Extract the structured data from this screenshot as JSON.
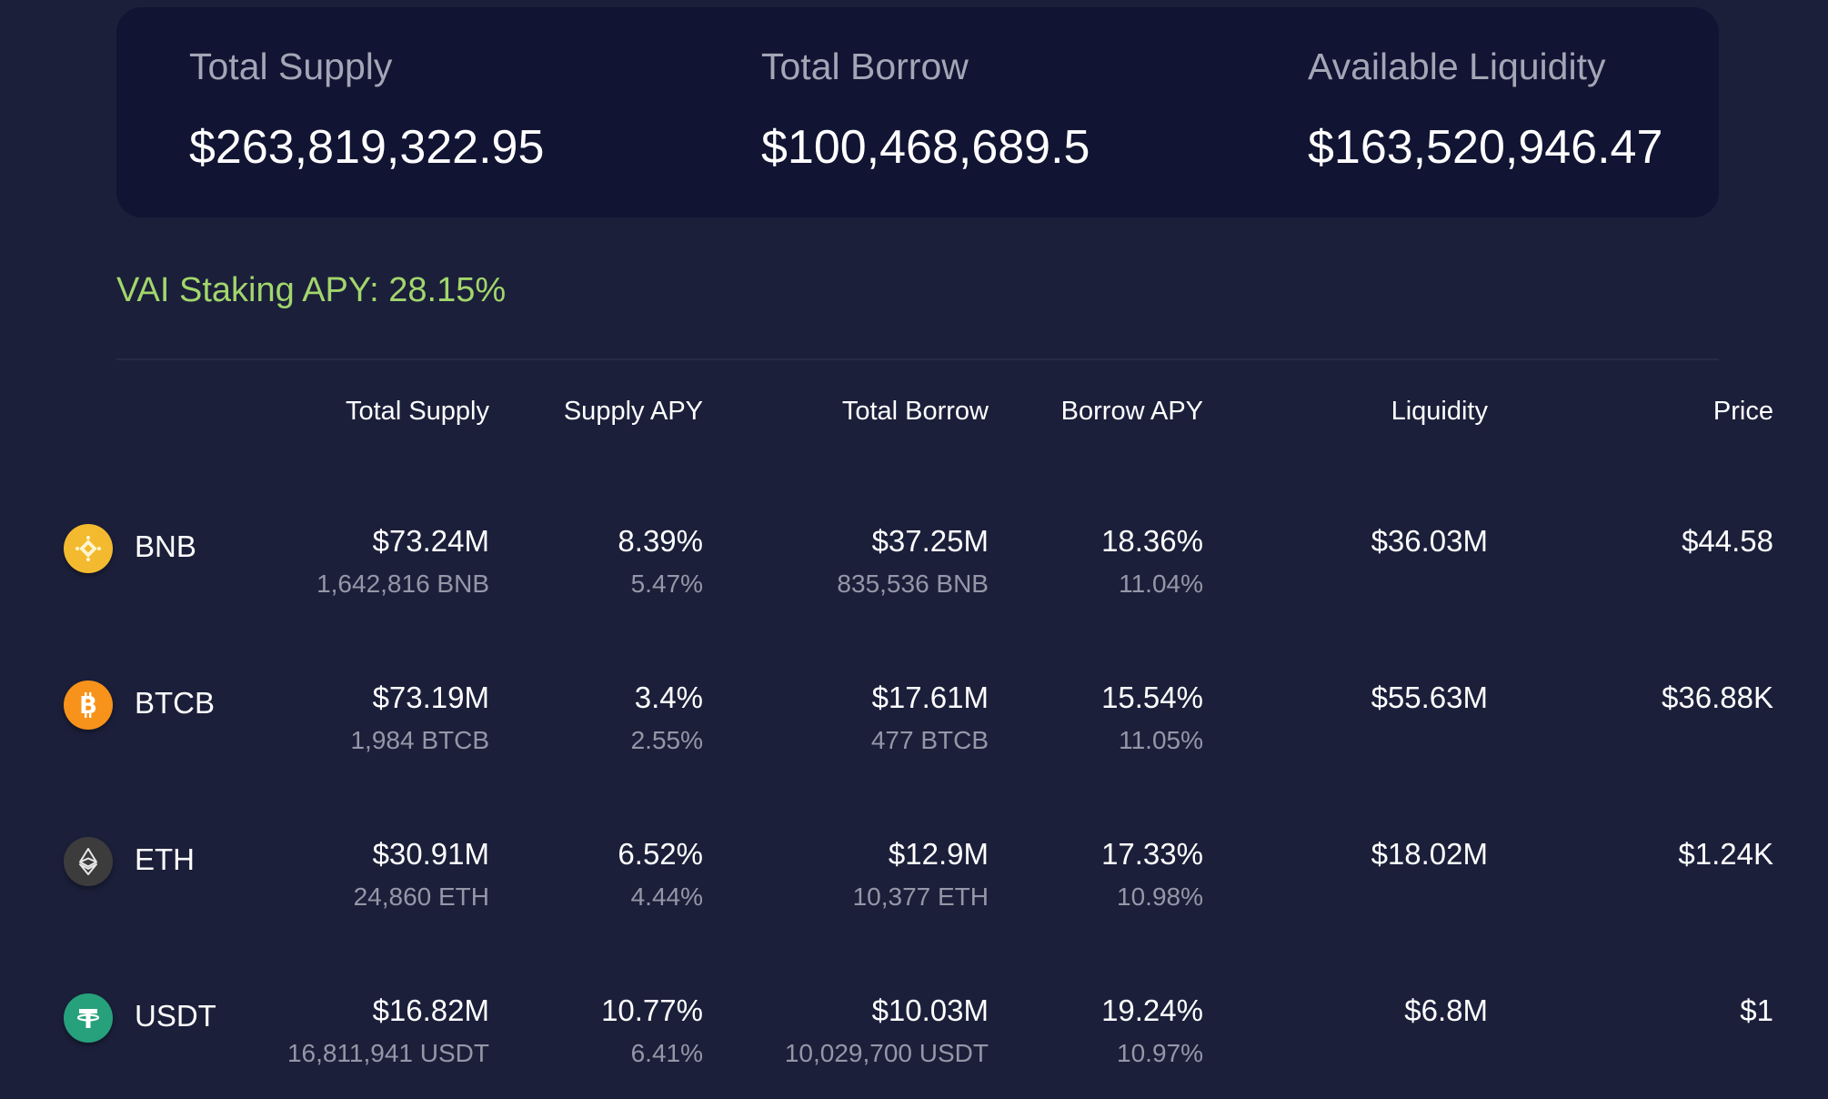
{
  "summary": {
    "total_supply_label": "Total Supply",
    "total_supply_value": "$263,819,322.95",
    "total_borrow_label": "Total Borrow",
    "total_borrow_value": "$100,468,689.5",
    "available_liquidity_label": "Available Liquidity",
    "available_liquidity_value": "$163,520,946.47"
  },
  "vai_staking": "VAI Staking APY: 28.15%",
  "table": {
    "headers": [
      "Total Supply",
      "Supply APY",
      "Total Borrow",
      "Borrow APY",
      "Liquidity",
      "Price"
    ],
    "rows": [
      {
        "asset": "BNB",
        "icon": "bnb-icon",
        "icon_color": "#f3ba2f",
        "total_supply": "$73.24M",
        "total_supply_tokens": "1,642,816 BNB",
        "supply_apy": "8.39%",
        "supply_apy_sub": "5.47%",
        "total_borrow": "$37.25M",
        "total_borrow_tokens": "835,536 BNB",
        "borrow_apy": "18.36%",
        "borrow_apy_sub": "11.04%",
        "liquidity": "$36.03M",
        "price": "$44.58"
      },
      {
        "asset": "BTCB",
        "icon": "bitcoin-icon",
        "icon_color": "#f7931a",
        "total_supply": "$73.19M",
        "total_supply_tokens": "1,984 BTCB",
        "supply_apy": "3.4%",
        "supply_apy_sub": "2.55%",
        "total_borrow": "$17.61M",
        "total_borrow_tokens": "477 BTCB",
        "borrow_apy": "15.54%",
        "borrow_apy_sub": "11.05%",
        "liquidity": "$55.63M",
        "price": "$36.88K"
      },
      {
        "asset": "ETH",
        "icon": "ethereum-icon",
        "icon_color": "#3c3c3d",
        "total_supply": "$30.91M",
        "total_supply_tokens": "24,860 ETH",
        "supply_apy": "6.52%",
        "supply_apy_sub": "4.44%",
        "total_borrow": "$12.9M",
        "total_borrow_tokens": "10,377 ETH",
        "borrow_apy": "17.33%",
        "borrow_apy_sub": "10.98%",
        "liquidity": "$18.02M",
        "price": "$1.24K"
      },
      {
        "asset": "USDT",
        "icon": "tether-icon",
        "icon_color": "#26a17b",
        "total_supply": "$16.82M",
        "total_supply_tokens": "16,811,941 USDT",
        "supply_apy": "10.77%",
        "supply_apy_sub": "6.41%",
        "total_borrow": "$10.03M",
        "total_borrow_tokens": "10,029,700 USDT",
        "borrow_apy": "19.24%",
        "borrow_apy_sub": "10.97%",
        "liquidity": "$6.8M",
        "price": "$1"
      }
    ]
  },
  "colors": {
    "page_background": "#1b1f3a",
    "card_background": "#111432",
    "accent_green": "#a2d66c",
    "muted_text": "#9597a8"
  }
}
